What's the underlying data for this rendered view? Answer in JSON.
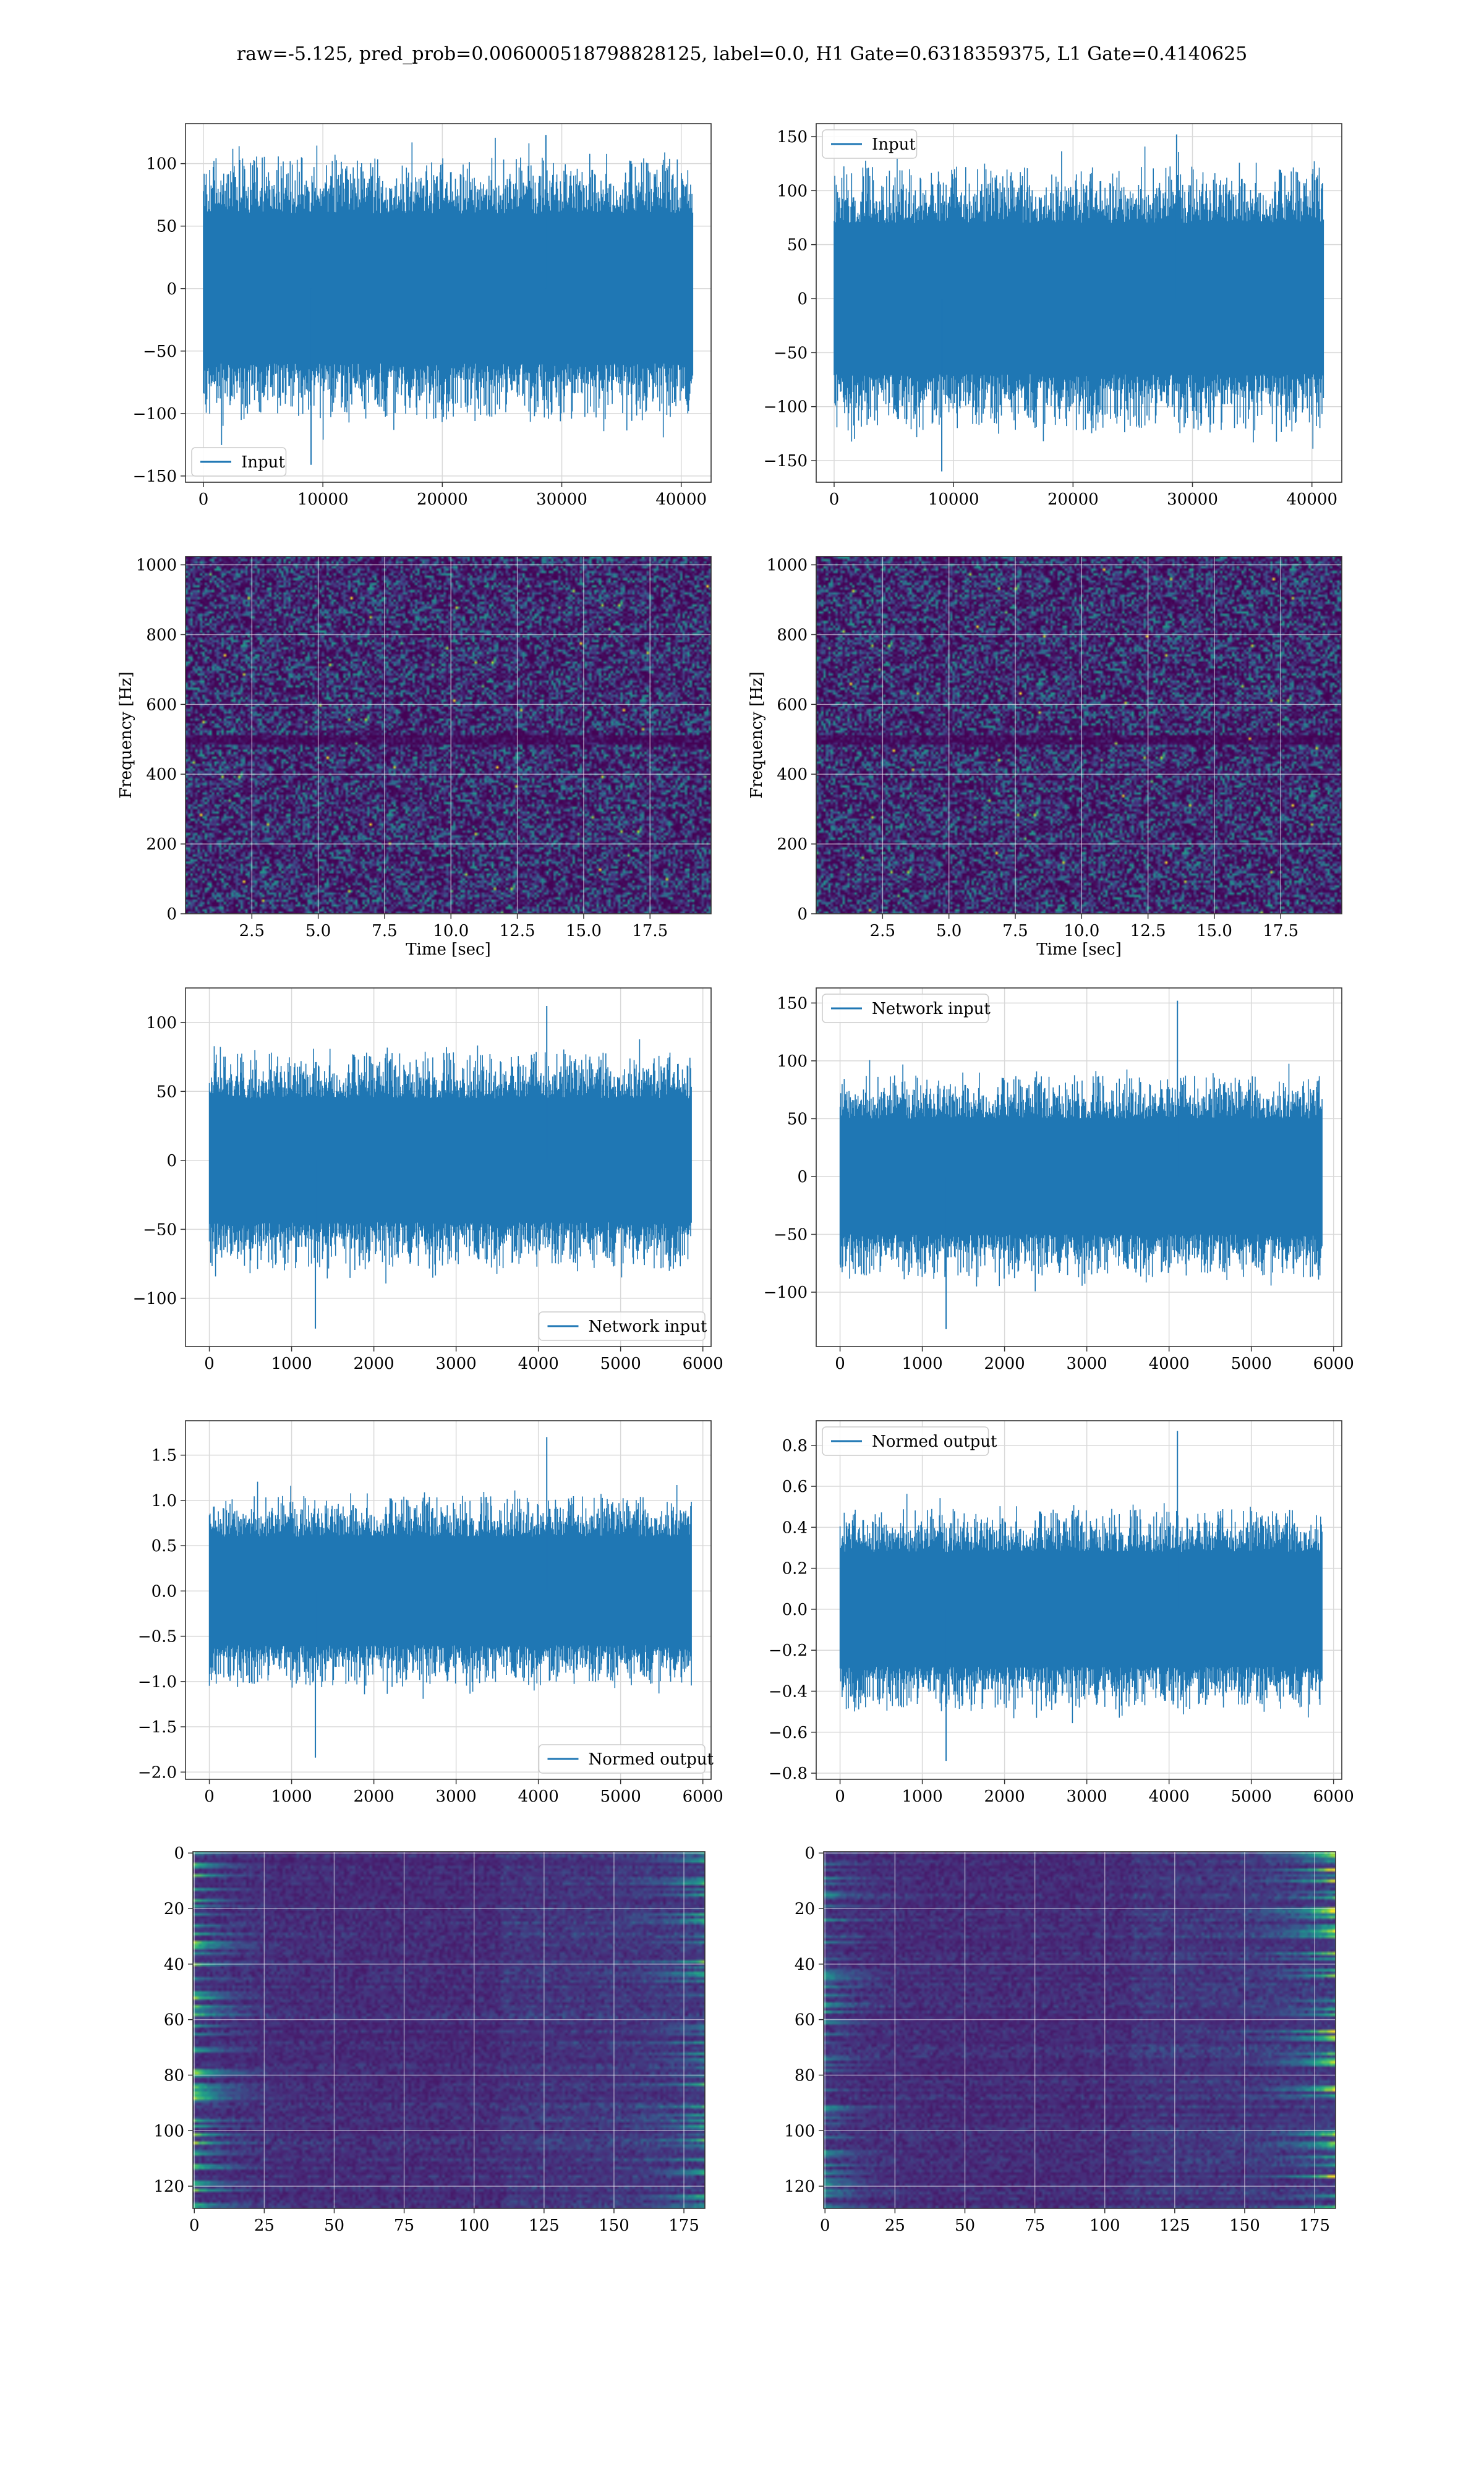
{
  "suptitle": "raw=-5.125, pred_prob=0.006000518798828125, label=0.0, H1 Gate=0.6318359375, L1 Gate=0.4140625",
  "colors": {
    "line": "#1f77b4",
    "grid": "#d9d9d9",
    "axes": "#333333"
  },
  "chart_data": [
    {
      "type": "line",
      "title": "",
      "xlabel": "",
      "ylabel": "",
      "xlim": [
        -1500,
        42500
      ],
      "ylim": [
        -155,
        132
      ],
      "xticks": [
        0,
        10000,
        20000,
        30000,
        40000
      ],
      "yticks": [
        -150,
        -100,
        -50,
        0,
        50,
        100
      ],
      "grid": true,
      "legend": "lower left",
      "series": [
        {
          "name": "Input",
          "n": 40960,
          "x_range": [
            0,
            40960
          ],
          "core_amplitude": 60,
          "extreme_min": -141,
          "extreme_max": 123
        }
      ]
    },
    {
      "type": "line",
      "title": "",
      "xlabel": "",
      "ylabel": "",
      "xlim": [
        -1500,
        42500
      ],
      "ylim": [
        -170,
        162
      ],
      "xticks": [
        0,
        10000,
        20000,
        30000,
        40000
      ],
      "yticks": [
        -150,
        -100,
        -50,
        0,
        50,
        100,
        150
      ],
      "grid": true,
      "legend": "upper left",
      "series": [
        {
          "name": "Input",
          "n": 40960,
          "x_range": [
            0,
            40960
          ],
          "core_amplitude": 70,
          "extreme_min": -160,
          "extreme_max": 152
        }
      ]
    },
    {
      "type": "heatmap",
      "colormap": "viridis",
      "title": "",
      "xlabel": "Time [sec]",
      "ylabel": "Frequency [Hz]",
      "xlim": [
        0,
        19.8
      ],
      "ylim": [
        0,
        1024
      ],
      "xticks": [
        2.5,
        5.0,
        7.5,
        10.0,
        12.5,
        15.0,
        17.5
      ],
      "yticks": [
        0,
        200,
        400,
        600,
        800,
        1000
      ],
      "grid": true,
      "dark_band_hz": 500
    },
    {
      "type": "heatmap",
      "colormap": "viridis",
      "title": "",
      "xlabel": "Time [sec]",
      "ylabel": "Frequency [Hz]",
      "xlim": [
        0,
        19.8
      ],
      "ylim": [
        0,
        1024
      ],
      "xticks": [
        2.5,
        5.0,
        7.5,
        10.0,
        12.5,
        15.0,
        17.5
      ],
      "yticks": [
        0,
        200,
        400,
        600,
        800,
        1000
      ],
      "grid": true,
      "dark_band_hz": 500
    },
    {
      "type": "line",
      "title": "",
      "xlabel": "",
      "ylabel": "",
      "xlim": [
        -290,
        6100
      ],
      "ylim": [
        -135,
        125
      ],
      "xticks": [
        0,
        1000,
        2000,
        3000,
        4000,
        5000,
        6000
      ],
      "yticks": [
        -100,
        -50,
        0,
        50,
        100
      ],
      "grid": true,
      "legend": "lower right",
      "series": [
        {
          "name": "Network input",
          "n": 5860,
          "x_range": [
            0,
            5860
          ],
          "core_amplitude": 45,
          "extreme_min": -122,
          "extreme_max": 112
        }
      ]
    },
    {
      "type": "line",
      "title": "",
      "xlabel": "",
      "ylabel": "",
      "xlim": [
        -290,
        6100
      ],
      "ylim": [
        -147,
        163
      ],
      "xticks": [
        0,
        1000,
        2000,
        3000,
        4000,
        5000,
        6000
      ],
      "yticks": [
        -100,
        -50,
        0,
        50,
        100,
        150
      ],
      "grid": true,
      "legend": "upper left",
      "series": [
        {
          "name": "Network input",
          "n": 5860,
          "x_range": [
            0,
            5860
          ],
          "core_amplitude": 50,
          "extreme_min": -132,
          "extreme_max": 152
        }
      ]
    },
    {
      "type": "line",
      "title": "",
      "xlabel": "",
      "ylabel": "",
      "xlim": [
        -290,
        6100
      ],
      "ylim": [
        -2.08,
        1.88
      ],
      "xticks": [
        0,
        1000,
        2000,
        3000,
        4000,
        5000,
        6000
      ],
      "yticks": [
        -2.0,
        -1.5,
        -1.0,
        -0.5,
        0.0,
        0.5,
        1.0,
        1.5
      ],
      "grid": true,
      "legend": "lower right",
      "series": [
        {
          "name": "Normed output",
          "n": 5860,
          "x_range": [
            0,
            5860
          ],
          "core_amplitude": 0.6,
          "extreme_min": -1.84,
          "extreme_max": 1.7
        }
      ]
    },
    {
      "type": "line",
      "title": "",
      "xlabel": "",
      "ylabel": "",
      "xlim": [
        -290,
        6100
      ],
      "ylim": [
        -0.83,
        0.92
      ],
      "xticks": [
        0,
        1000,
        2000,
        3000,
        4000,
        5000,
        6000
      ],
      "yticks": [
        -0.8,
        -0.6,
        -0.4,
        -0.2,
        0.0,
        0.2,
        0.4,
        0.6,
        0.8
      ],
      "grid": true,
      "legend": "upper left",
      "series": [
        {
          "name": "Normed output",
          "n": 5860,
          "x_range": [
            0,
            5860
          ],
          "core_amplitude": 0.28,
          "extreme_min": -0.74,
          "extreme_max": 0.87
        }
      ]
    },
    {
      "type": "heatmap",
      "colormap": "viridis",
      "title": "",
      "xlabel": "",
      "ylabel": "",
      "xlim": [
        -0.5,
        182.5
      ],
      "ylim": [
        128,
        -0.5
      ],
      "rows": 128,
      "cols": 183,
      "xticks": [
        0,
        25,
        50,
        75,
        100,
        125,
        150,
        175
      ],
      "yticks": [
        0,
        20,
        40,
        60,
        80,
        100,
        120
      ],
      "grid": true
    },
    {
      "type": "heatmap",
      "colormap": "viridis",
      "title": "",
      "xlabel": "",
      "ylabel": "",
      "xlim": [
        -0.5,
        182.5
      ],
      "ylim": [
        128,
        -0.5
      ],
      "rows": 128,
      "cols": 183,
      "xticks": [
        0,
        25,
        50,
        75,
        100,
        125,
        150,
        175
      ],
      "yticks": [
        0,
        20,
        40,
        60,
        80,
        100,
        120
      ],
      "grid": true
    }
  ]
}
